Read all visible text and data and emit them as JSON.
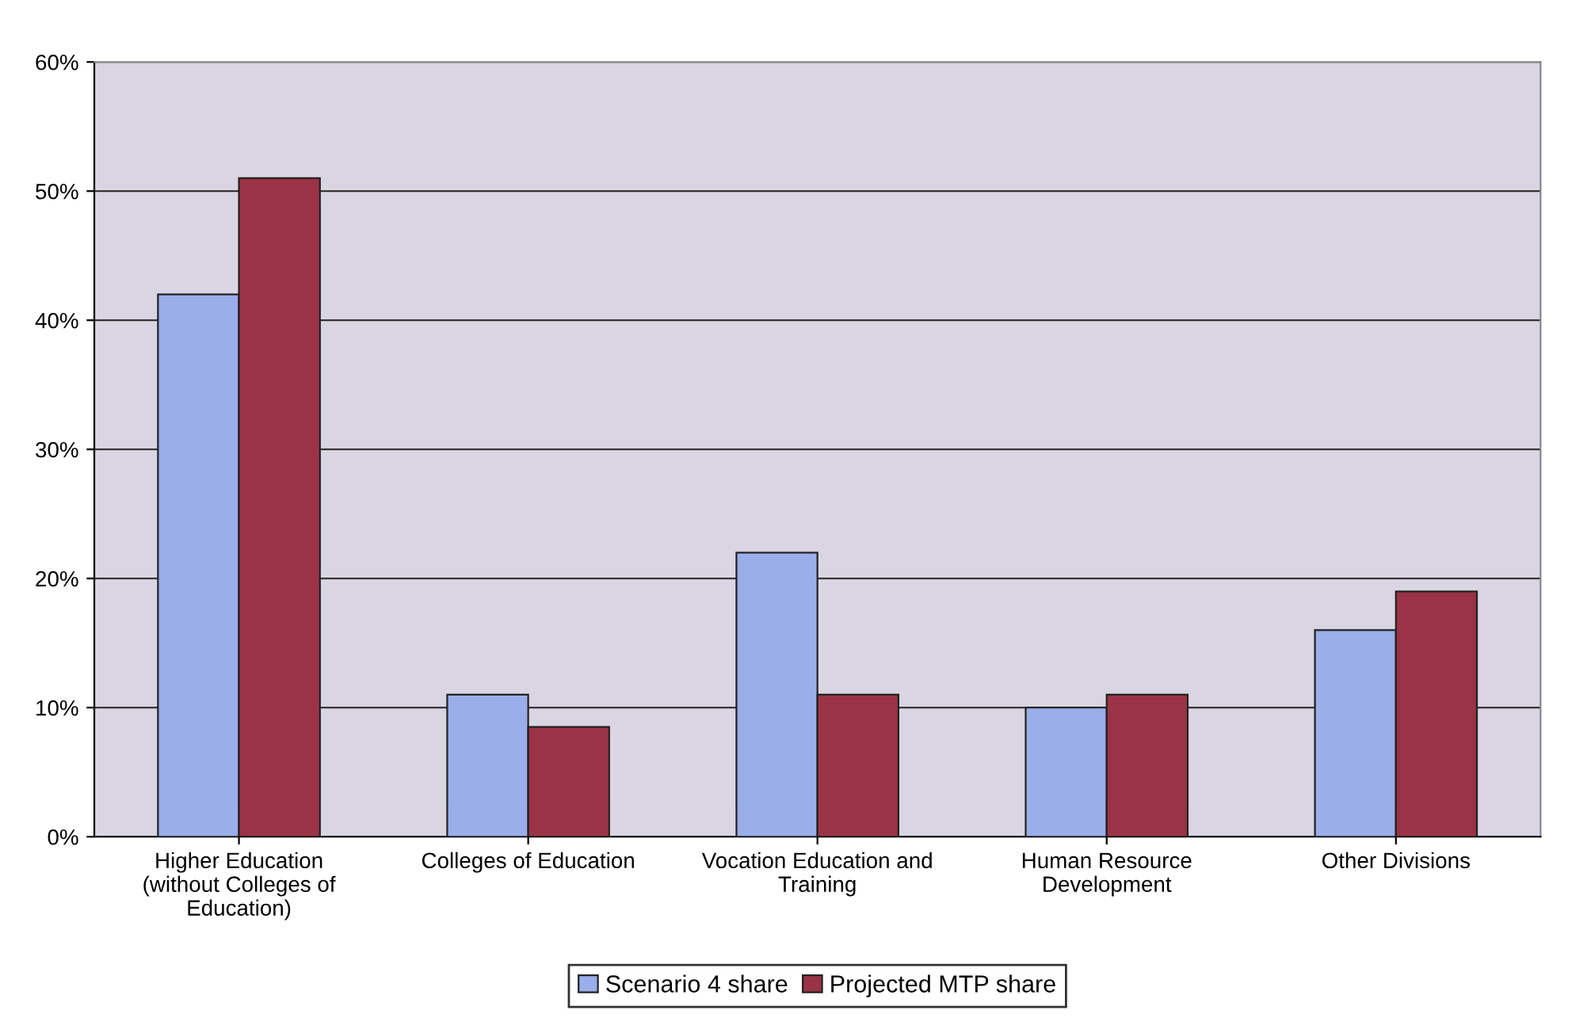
{
  "chart_data": {
    "type": "bar",
    "categories": [
      "Higher Education\n(without Colleges of\nEducation)",
      "Colleges of Education",
      "Vocation Education and\nTraining",
      "Human Resource\nDevelopment",
      "Other Divisions"
    ],
    "series": [
      {
        "name": "Scenario 4 share",
        "color": "#9aaeea",
        "values": [
          42,
          11,
          22,
          10,
          16
        ]
      },
      {
        "name": "Projected MTP share",
        "color": "#9b3346",
        "values": [
          51,
          8.5,
          11,
          11,
          19
        ]
      }
    ],
    "ylim": [
      0,
      60
    ],
    "yticks": [
      {
        "value": 0,
        "label": "0%"
      },
      {
        "value": 10,
        "label": "10%"
      },
      {
        "value": 20,
        "label": "20%"
      },
      {
        "value": 30,
        "label": "30%"
      },
      {
        "value": 40,
        "label": "40%"
      },
      {
        "value": 50,
        "label": "50%"
      },
      {
        "value": 60,
        "label": "60%"
      }
    ],
    "grid": "y",
    "legend": "bottom"
  }
}
